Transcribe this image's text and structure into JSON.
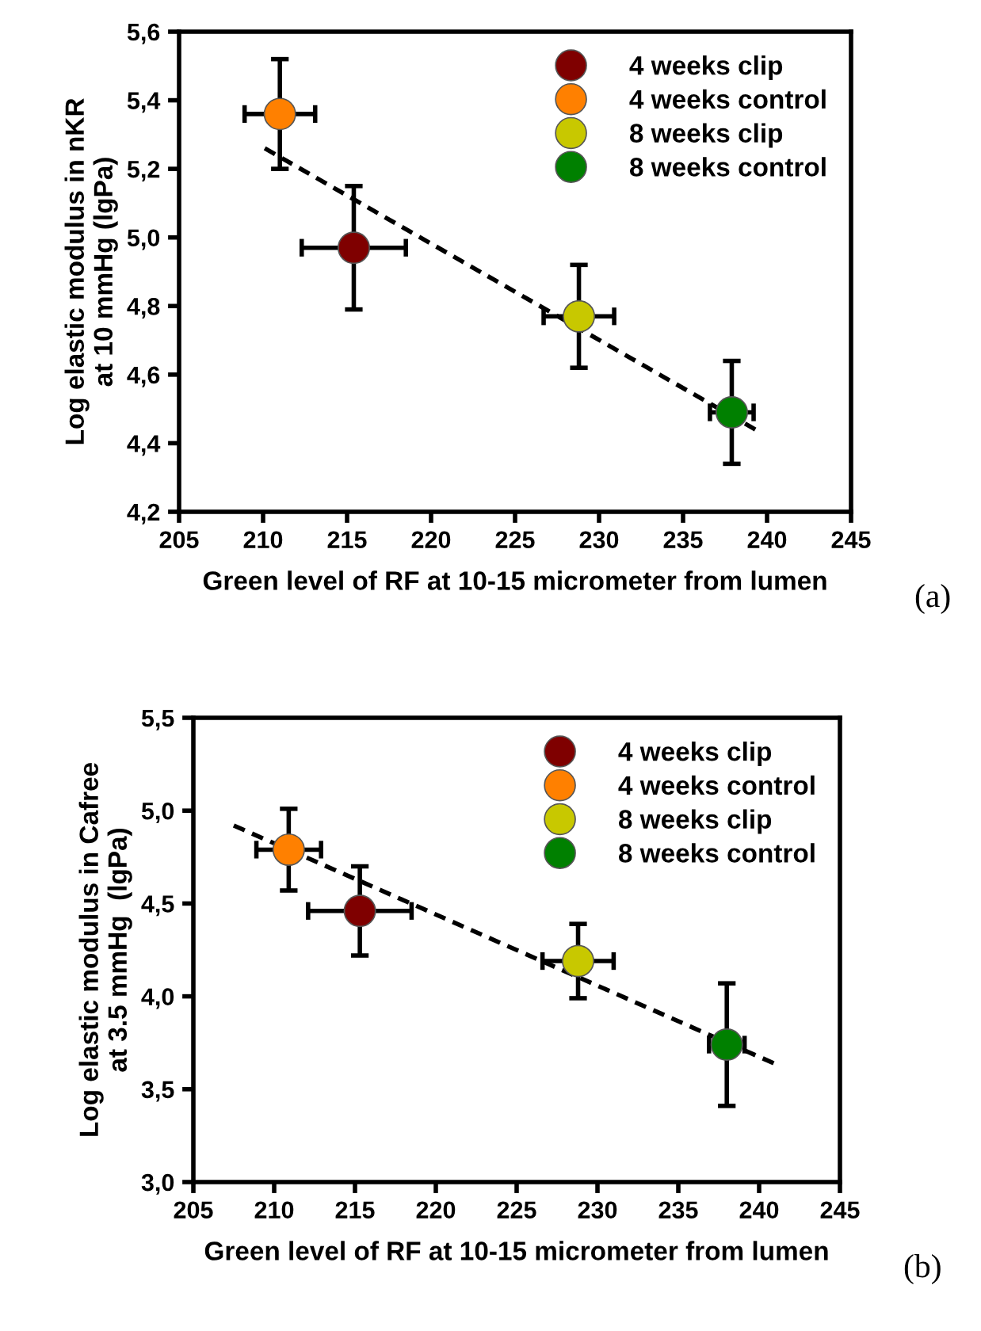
{
  "chart_data": [
    {
      "type": "scatter",
      "xlabel": "Green level of RF at 10-15 micrometer from lumen",
      "ylabel": "Log elastic modulus in nKR\nat 10 mmHg (lgPa)",
      "annotations": [
        "(a)"
      ],
      "xlim": [
        205,
        245
      ],
      "xticks": [
        205,
        210,
        215,
        220,
        225,
        230,
        235,
        240,
        245
      ],
      "ylim": [
        4.2,
        5.6
      ],
      "yticks": [
        {
          "value": 4.2,
          "label": "4,2"
        },
        {
          "value": 4.4,
          "label": "4,4"
        },
        {
          "value": 4.6,
          "label": "4,6"
        },
        {
          "value": 4.8,
          "label": "4,8"
        },
        {
          "value": 5.0,
          "label": "5,0"
        },
        {
          "value": 5.2,
          "label": "5,2"
        },
        {
          "value": 5.4,
          "label": "5,4"
        },
        {
          "value": 5.6,
          "label": "5,6"
        }
      ],
      "legend": "top right",
      "grid": false,
      "marker": "circle",
      "series": [
        {
          "name": "4 weeks clip",
          "color": "#7f0000",
          "x": [
            215.4
          ],
          "values": [
            4.97
          ],
          "errors": [
            0.18
          ],
          "xerrors": [
            3.1
          ]
        },
        {
          "name": "4 weeks control",
          "color": "#ff8000",
          "x": [
            211.0
          ],
          "values": [
            5.36
          ],
          "errors": [
            0.16
          ],
          "xerrors": [
            2.1
          ]
        },
        {
          "name": "8 weeks clip",
          "color": "#c8c800",
          "x": [
            228.8
          ],
          "values": [
            4.77
          ],
          "errors": [
            0.15
          ],
          "xerrors": [
            2.1
          ]
        },
        {
          "name": "8 weeks control",
          "color": "#008000",
          "x": [
            237.9
          ],
          "values": [
            4.49
          ],
          "errors": [
            0.15
          ],
          "xerrors": [
            1.3
          ]
        },
        {
          "type": "line",
          "line_style": "dashed",
          "marker": "none",
          "color": "#000000",
          "x": [
            210.1,
            239.3
          ],
          "values": [
            5.26,
            4.44
          ]
        }
      ]
    },
    {
      "type": "scatter",
      "xlabel": "Green level of RF at 10-15 micrometer from lumen",
      "ylabel": "Log elastic modulus in Cafree\nat 3.5 mmHg  (lgPa)",
      "annotations": [
        "(b)"
      ],
      "xlim": [
        205,
        245
      ],
      "xticks": [
        205,
        210,
        215,
        220,
        225,
        230,
        235,
        240,
        245
      ],
      "ylim": [
        3.0,
        5.5
      ],
      "yticks": [
        {
          "value": 3.0,
          "label": "3,0"
        },
        {
          "value": 3.5,
          "label": "3,5"
        },
        {
          "value": 4.0,
          "label": "4,0"
        },
        {
          "value": 4.5,
          "label": "4,5"
        },
        {
          "value": 5.0,
          "label": "5,0"
        },
        {
          "value": 5.5,
          "label": "5,5"
        }
      ],
      "legend": "top right",
      "grid": false,
      "marker": "circle",
      "series": [
        {
          "name": "4 weeks clip",
          "color": "#7f0000",
          "x": [
            215.3
          ],
          "values": [
            4.46
          ],
          "errors": [
            0.24
          ],
          "xerrors": [
            3.2
          ]
        },
        {
          "name": "4 weeks control",
          "color": "#ff8000",
          "x": [
            210.9
          ],
          "values": [
            4.79
          ],
          "errors": [
            0.22
          ],
          "xerrors": [
            2.0
          ]
        },
        {
          "name": "8 weeks clip",
          "color": "#c8c800",
          "x": [
            228.8
          ],
          "values": [
            4.19
          ],
          "errors": [
            0.2
          ],
          "xerrors": [
            2.2
          ]
        },
        {
          "name": "8 weeks control",
          "color": "#008000",
          "x": [
            238.0
          ],
          "values": [
            3.74
          ],
          "errors": [
            0.33
          ],
          "xerrors": [
            1.1
          ]
        },
        {
          "type": "line",
          "line_style": "dashed",
          "marker": "none",
          "color": "#000000",
          "x": [
            207.5,
            240.9
          ],
          "values": [
            4.92,
            3.64
          ]
        }
      ]
    }
  ]
}
